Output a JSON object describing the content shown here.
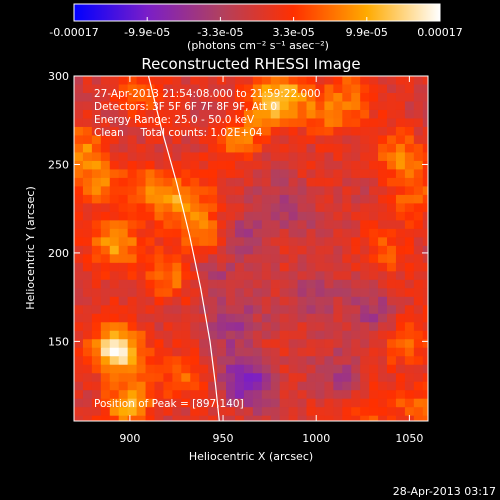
{
  "chart_data": {
    "type": "heatmap",
    "title": "Reconstructed RHESSI Image",
    "xlabel": "Heliocentric X (arcsec)",
    "ylabel": "Heliocentric Y (arcsec)",
    "xlim": [
      870,
      1060
    ],
    "ylim": [
      105,
      300
    ],
    "x_ticks": [
      "900",
      "950",
      "1000",
      "1050"
    ],
    "x_tick_values": [
      900,
      950,
      1000,
      1050
    ],
    "y_ticks": [
      "150",
      "200",
      "250",
      "300"
    ],
    "y_tick_values": [
      150,
      200,
      250,
      300
    ],
    "colorbar": {
      "min": -0.00017,
      "max": 0.00017,
      "tick_labels": [
        "-0.00017",
        "-9.9e-05",
        "-3.3e-05",
        "3.3e-05",
        "9.9e-05",
        "0.00017"
      ],
      "units_label": "(photons cm⁻² s⁻¹ asec⁻²)",
      "colormap": [
        "#0000ff",
        "#7a1ec8",
        "#b04060",
        "#ff3000",
        "#ffaa00",
        "#ffffff"
      ]
    },
    "annotations": {
      "time": "27-Apr-2013 21:54:08.000 to 21:59:22.000",
      "detectors": "Detectors: 3F 5F 6F 7F 8F 9F, Att 0",
      "energy": "Energy Range: 25.0 - 50.0 keV",
      "method": "Clean     Total counts: 1.02E+04",
      "peak": "Position of Peak = [897,140]"
    },
    "hot_spots": [
      {
        "x": 893,
        "y": 145,
        "value": 0.00017
      },
      {
        "x": 892,
        "y": 205,
        "value": 0.00011
      },
      {
        "x": 912,
        "y": 235,
        "value": 9e-05
      },
      {
        "x": 920,
        "y": 185,
        "value": 8e-05
      },
      {
        "x": 930,
        "y": 230,
        "value": 8e-05
      },
      {
        "x": 940,
        "y": 210,
        "value": 7e-05
      },
      {
        "x": 875,
        "y": 260,
        "value": 7e-05
      },
      {
        "x": 880,
        "y": 240,
        "value": 7e-05
      },
      {
        "x": 905,
        "y": 290,
        "value": 6e-05
      },
      {
        "x": 958,
        "y": 265,
        "value": 7e-05
      },
      {
        "x": 975,
        "y": 285,
        "value": 8e-05
      },
      {
        "x": 985,
        "y": 290,
        "value": 7e-05
      },
      {
        "x": 1005,
        "y": 278,
        "value": 7e-05
      },
      {
        "x": 1020,
        "y": 290,
        "value": 6e-05
      },
      {
        "x": 1045,
        "y": 255,
        "value": 8e-05
      },
      {
        "x": 1052,
        "y": 230,
        "value": 6e-05
      },
      {
        "x": 1050,
        "y": 150,
        "value": 7e-05
      },
      {
        "x": 1030,
        "y": 110,
        "value": 6e-05
      },
      {
        "x": 1055,
        "y": 115,
        "value": 5e-05
      },
      {
        "x": 900,
        "y": 115,
        "value": 0.0001
      },
      {
        "x": 930,
        "y": 130,
        "value": 6e-05
      },
      {
        "x": 1040,
        "y": 200,
        "value": 5e-05
      }
    ],
    "cold_spots": [
      {
        "x": 963,
        "y": 128,
        "value": -0.00011
      },
      {
        "x": 955,
        "y": 160,
        "value": -6e-05
      },
      {
        "x": 965,
        "y": 210,
        "value": -5e-05
      },
      {
        "x": 1000,
        "y": 175,
        "value": -5e-05
      },
      {
        "x": 985,
        "y": 225,
        "value": -4e-05
      },
      {
        "x": 1030,
        "y": 165,
        "value": -4e-05
      },
      {
        "x": 1015,
        "y": 130,
        "value": -4e-05
      },
      {
        "x": 945,
        "y": 185,
        "value": -4e-05
      }
    ],
    "limb_curve": {
      "x": [
        910,
        917,
        925,
        932,
        938,
        943,
        946,
        948
      ],
      "y": [
        300,
        270,
        240,
        210,
        180,
        150,
        125,
        105
      ]
    }
  },
  "footer": {
    "timestamp": "28-Apr-2013 03:17"
  }
}
